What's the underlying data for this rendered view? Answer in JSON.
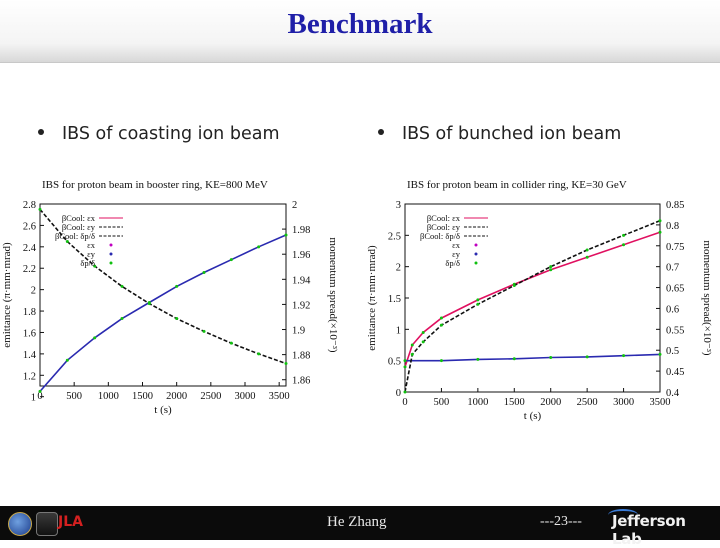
{
  "slide": {
    "title": "Benchmark",
    "bullets": [
      "IBS of coasting ion beam",
      "IBS of bunched ion beam"
    ]
  },
  "footer": {
    "name": "He Zhang",
    "page": "---23---",
    "brand": "Jefferson Lab",
    "logo_text": "JLA"
  },
  "colors": {
    "title": "#1f1fa8",
    "red_series": "#e01060",
    "blue_series": "#2a2ab0",
    "green_series": "#10c010",
    "magenta_points": "#c000c0",
    "footer_bg": "#0b0b0b"
  },
  "chart_data": [
    {
      "type": "line",
      "title": "IBS for proton beam in booster ring, KE=800 MeV",
      "xlabel": "t (s)",
      "ylabel": "emittance (π·mm·mrad)",
      "y2label": "momentum spread(×10⁻³)",
      "xlim": [
        0,
        3600
      ],
      "ylim": [
        1.1,
        2.8
      ],
      "y2lim": [
        1.855,
        2.0
      ],
      "xticks": [
        "0",
        "500",
        "1000",
        "1500",
        "2000",
        "2500",
        "3000",
        "3500"
      ],
      "yticks": [
        "1",
        "1.2",
        "1.4",
        "1.6",
        "1.8",
        "2",
        "2.2",
        "2.4",
        "2.6",
        "2.8"
      ],
      "y2ticks": [
        "1.86",
        "1.88",
        "1.9",
        "1.92",
        "1.94",
        "1.96",
        "1.98",
        "2"
      ],
      "legend": [
        "βCool: εx",
        "βCool: εy",
        "βCool: δp/δ",
        "εx",
        "εy",
        "δp/δ"
      ],
      "legend_position": "top-left",
      "series": [
        {
          "axis": "y",
          "color": "#2a2ab0",
          "style": "solid",
          "x": [
            0,
            400,
            800,
            1200,
            1600,
            2000,
            2400,
            2800,
            3200,
            3600
          ],
          "values": [
            1.05,
            1.34,
            1.55,
            1.73,
            1.88,
            2.03,
            2.16,
            2.28,
            2.4,
            2.51
          ]
        },
        {
          "axis": "y",
          "color": "#111111",
          "style": "dashed",
          "x": [
            0,
            400,
            800,
            1200,
            1600,
            2000,
            2400,
            2800,
            3200,
            3600
          ],
          "values": [
            2.75,
            2.45,
            2.22,
            2.03,
            1.87,
            1.73,
            1.61,
            1.5,
            1.4,
            1.31
          ]
        }
      ]
    },
    {
      "type": "line",
      "title": "IBS for proton beam in collider ring, KE=30 GeV",
      "xlabel": "t (s)",
      "ylabel": "emittance (π·mm·mrad)",
      "y2label": "momentum spread(×10⁻³)",
      "xlim": [
        0,
        3500
      ],
      "ylim": [
        0,
        3
      ],
      "y2lim": [
        0.4,
        0.85
      ],
      "xticks": [
        "0",
        "500",
        "1000",
        "1500",
        "2000",
        "2500",
        "3000",
        "3500"
      ],
      "yticks": [
        "0",
        "0.5",
        "1",
        "1.5",
        "2",
        "2.5",
        "3"
      ],
      "y2ticks": [
        "0.4",
        "0.45",
        "0.5",
        "0.55",
        "0.6",
        "0.65",
        "0.7",
        "0.75",
        "0.8",
        "0.85"
      ],
      "legend": [
        "βCool: εx",
        "βCool: εy",
        "βCool: δp/δ",
        "εx",
        "εy",
        "δp/δ"
      ],
      "legend_position": "top-left",
      "series": [
        {
          "axis": "y",
          "color": "#e01060",
          "style": "solid",
          "x": [
            0,
            100,
            250,
            500,
            1000,
            1500,
            2000,
            2500,
            3000,
            3500
          ],
          "values": [
            0.4,
            0.75,
            0.95,
            1.18,
            1.47,
            1.72,
            1.95,
            2.15,
            2.35,
            2.55
          ]
        },
        {
          "axis": "y",
          "color": "#2a2ab0",
          "style": "solid",
          "x": [
            0,
            500,
            1000,
            1500,
            2000,
            2500,
            3000,
            3500
          ],
          "values": [
            0.5,
            0.5,
            0.52,
            0.53,
            0.55,
            0.56,
            0.58,
            0.6
          ]
        },
        {
          "axis": "y2",
          "color": "#111111",
          "style": "dashed",
          "x": [
            0,
            100,
            250,
            500,
            1000,
            1500,
            2000,
            2500,
            3000,
            3500
          ],
          "values": [
            0.4,
            0.49,
            0.52,
            0.56,
            0.61,
            0.655,
            0.7,
            0.74,
            0.775,
            0.81
          ]
        }
      ]
    }
  ]
}
